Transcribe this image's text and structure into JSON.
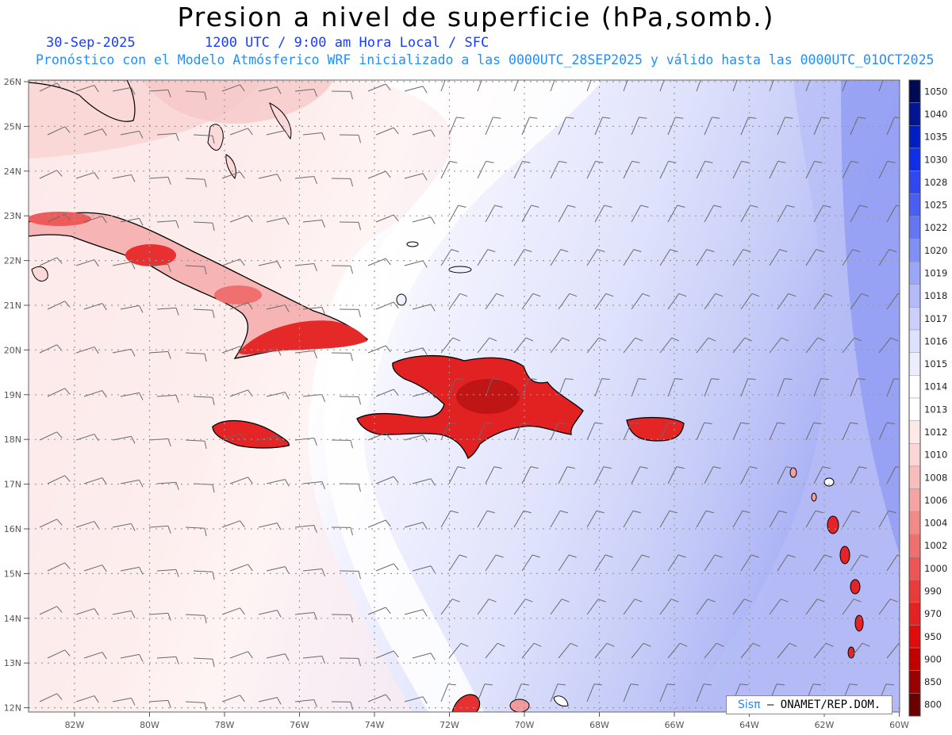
{
  "header": {
    "title": "Presion a nivel de superficie (hPa,somb.)",
    "date": "30-Sep-2025",
    "time_label": "1200 UTC / 9:00 am Hora Local / SFC",
    "model_line": "Pronóstico con el Modelo Atmósferico WRF inicializado a las 0000UTC_28SEP2025 y válido hasta las  0000UTC_01OCT2025"
  },
  "map": {
    "lat_labels": [
      "26N",
      "25N",
      "24N",
      "23N",
      "22N",
      "21N",
      "20N",
      "19N",
      "18N",
      "17N",
      "16N",
      "15N",
      "14N",
      "13N",
      "12N"
    ],
    "lon_labels": [
      "82W",
      "80W",
      "78W",
      "76W",
      "74W",
      "72W",
      "70W",
      "68W",
      "66W",
      "64W",
      "62W",
      "60W"
    ],
    "grid": "dotted",
    "colorbar": {
      "labels": [
        "1050",
        "1040",
        "1035",
        "1030",
        "1028",
        "1025",
        "1022",
        "1020",
        "1019",
        "1018",
        "1017",
        "1016",
        "1015",
        "1014",
        "1013",
        "1012",
        "1010",
        "1008",
        "1006",
        "1004",
        "1002",
        "1000",
        "990",
        "970",
        "950",
        "900",
        "850",
        "800"
      ],
      "colors": [
        "#000a52",
        "#00158f",
        "#001fc2",
        "#0f2ee6",
        "#2f47f0",
        "#4a5ef2",
        "#6676f3",
        "#8090f4",
        "#9aa6f6",
        "#b3bbf8",
        "#cbd0fa",
        "#dde1fc",
        "#ecedfe",
        "#ffffff",
        "#ffffff",
        "#fde9e9",
        "#fbd6d6",
        "#f8bdbd",
        "#f5a3a3",
        "#f28a8a",
        "#ef7070",
        "#ec5656",
        "#e83c3c",
        "#e52222",
        "#e00c0c",
        "#c20000",
        "#9a0000",
        "#6a0000"
      ]
    },
    "colors": {
      "land_high": "#e8232a",
      "low_pressure_tint": "#fbdcdc",
      "high_pressure_tint": "#c7cdf7",
      "coast": "#000000",
      "grid": "#9a9a9a",
      "barb": "#6a6a6a"
    }
  },
  "credit": {
    "brand": "Sisπ",
    "org": "– ONAMET/REP.DOM."
  }
}
